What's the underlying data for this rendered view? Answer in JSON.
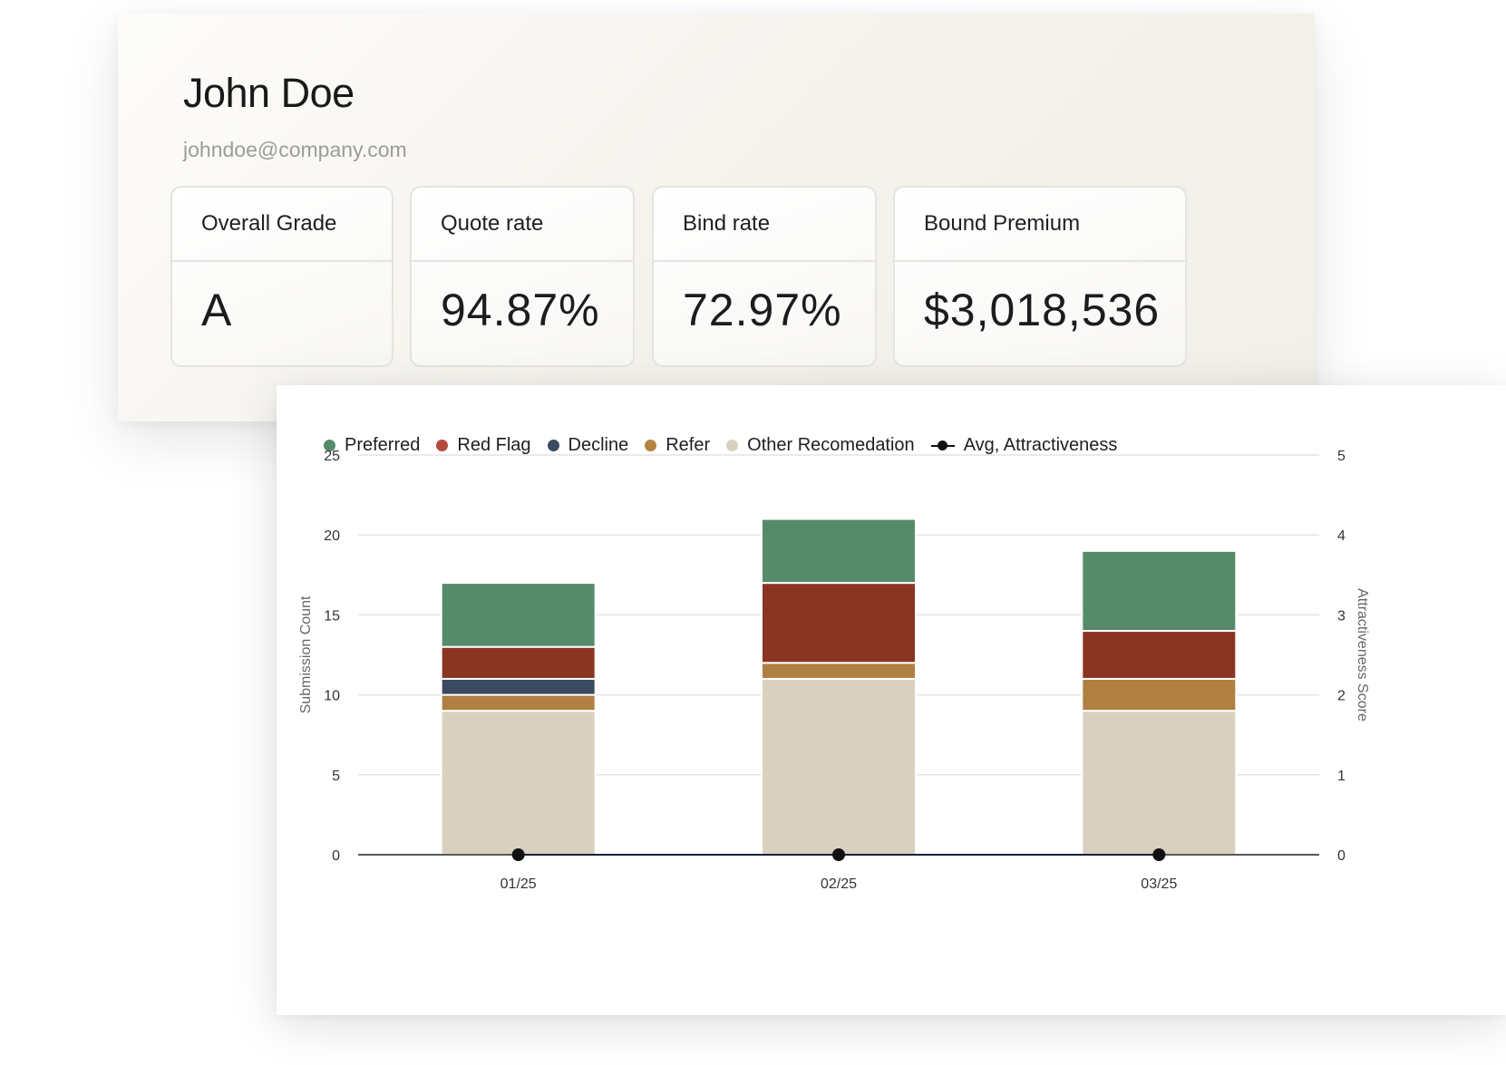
{
  "user": {
    "name": "John Doe",
    "email": "johndoe@company.com"
  },
  "stats": [
    {
      "label": "Overall Grade",
      "value": "A"
    },
    {
      "label": "Quote rate",
      "value": "94.87%"
    },
    {
      "label": "Bind rate",
      "value": "72.97%"
    },
    {
      "label": "Bound Premium",
      "value": "$3,018,536"
    }
  ],
  "legend": [
    {
      "label": "Preferred",
      "color": "#558b69"
    },
    {
      "label": "Red Flag",
      "color": "#b54a3b"
    },
    {
      "label": "Decline",
      "color": "#3b4a5e"
    },
    {
      "label": "Refer",
      "color": "#b5843f"
    },
    {
      "label": "Other Recomedation",
      "color": "#d9d1c0"
    },
    {
      "label": "Avg, Attractiveness",
      "color": "#111111"
    }
  ],
  "chart_data": {
    "type": "bar",
    "stacked": true,
    "categories": [
      "01/25",
      "02/25",
      "03/25"
    ],
    "series": [
      {
        "name": "Other Recomedation",
        "color": "#d9d1c0",
        "values": [
          9,
          11,
          9
        ]
      },
      {
        "name": "Refer",
        "color": "#b07f42",
        "values": [
          1,
          1,
          2
        ]
      },
      {
        "name": "Decline",
        "color": "#3b4a5e",
        "values": [
          1,
          0,
          0
        ]
      },
      {
        "name": "Red Flag",
        "color": "#8a3522",
        "values": [
          2,
          5,
          3
        ]
      },
      {
        "name": "Preferred",
        "color": "#558b69",
        "values": [
          4,
          4,
          5
        ]
      }
    ],
    "line_series": {
      "name": "Avg, Attractiveness",
      "color": "#111111",
      "values": [
        0,
        0,
        0
      ]
    },
    "ylabel": "Submission Count",
    "y2label": "Attractiveness Score",
    "ylim": [
      0,
      25
    ],
    "y2lim": [
      0,
      5
    ],
    "yticks": [
      "0",
      "5",
      "10",
      "15",
      "20",
      "25"
    ],
    "y2ticks": [
      "0",
      "1",
      "2",
      "3",
      "4",
      "5"
    ],
    "grid": true,
    "legend_position": "top-left"
  }
}
